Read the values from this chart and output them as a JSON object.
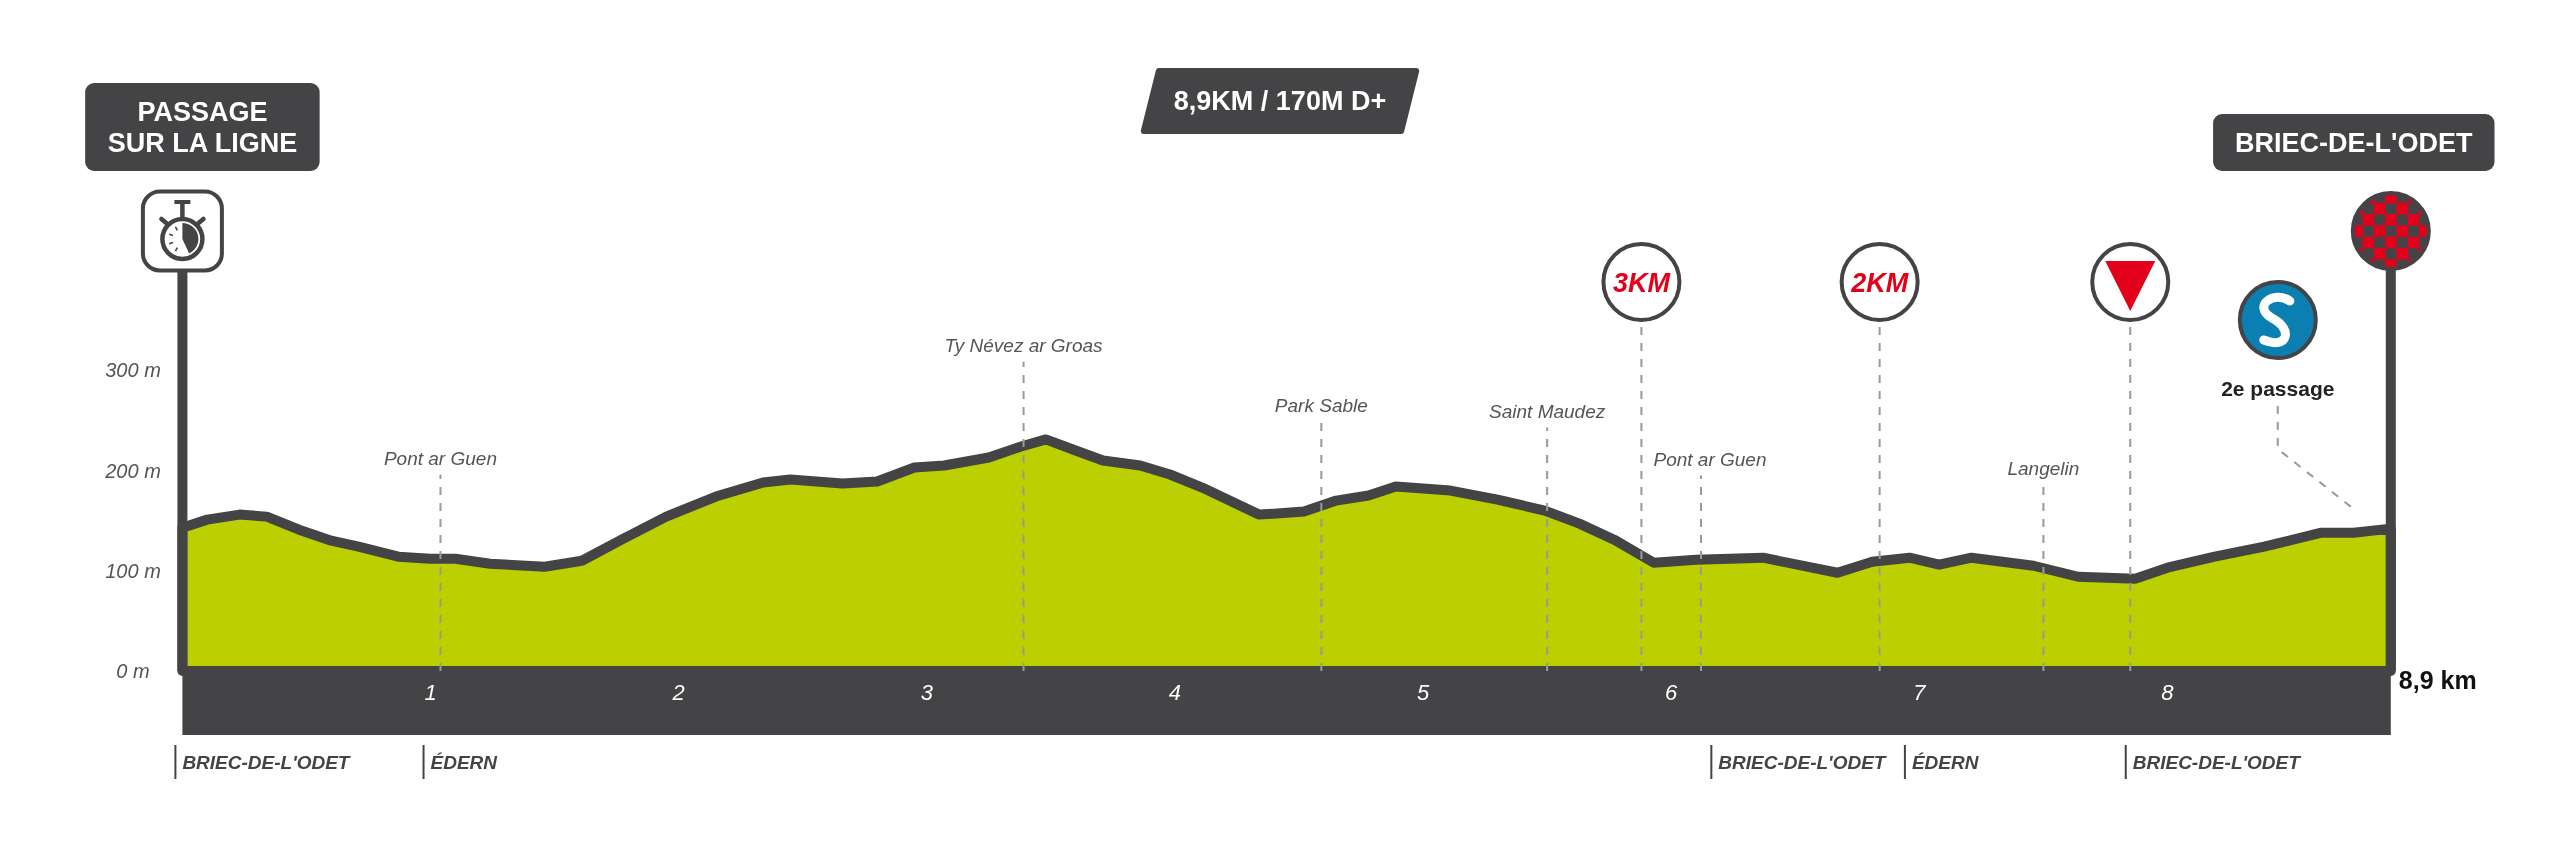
{
  "chart_data": {
    "type": "area",
    "title": "8,9KM / 170M D+",
    "x": [
      0,
      0.1,
      0.23,
      0.34,
      0.47,
      0.6,
      0.71,
      0.87,
      1,
      1.1,
      1.24,
      1.46,
      1.61,
      1.77,
      1.95,
      2.15,
      2.34,
      2.45,
      2.66,
      2.8,
      2.95,
      3.07,
      3.25,
      3.38,
      3.48,
      3.6,
      3.71,
      3.86,
      3.98,
      4.11,
      4.22,
      4.34,
      4.52,
      4.65,
      4.78,
      4.89,
      5.11,
      5.3,
      5.49,
      5.63,
      5.77,
      5.93,
      6.1,
      6.37,
      6.67,
      6.81,
      6.96,
      7.08,
      7.21,
      7.46,
      7.64,
      7.87,
      8,
      8.19,
      8.39,
      8.62,
      8.75,
      8.9
    ],
    "values": [
      143,
      151,
      156,
      154,
      141,
      130,
      124,
      114,
      112,
      112,
      107,
      104,
      110,
      131,
      154,
      174,
      188,
      191,
      187,
      189,
      203,
      205,
      213,
      224,
      231,
      220,
      210,
      205,
      196,
      183,
      170,
      156,
      159,
      170,
      175,
      184,
      180,
      171,
      160,
      147,
      131,
      108,
      111,
      113,
      98,
      109,
      113,
      106,
      113,
      105,
      94,
      92,
      103,
      114,
      124,
      138,
      138,
      142
    ],
    "color": "#bccf00",
    "xlim": [
      0,
      8.9
    ],
    "xticks": [
      1,
      2,
      3,
      4,
      5,
      6,
      7,
      8
    ],
    "ylim": [
      0,
      400
    ],
    "yticks": [
      {
        "value": 0,
        "label": "0 m"
      },
      {
        "value": 100,
        "label": "100 m"
      },
      {
        "value": 200,
        "label": "200 m"
      },
      {
        "value": 300,
        "label": "300 m"
      }
    ],
    "ref_lines": [
      {
        "axis": "x",
        "value": 1.04,
        "label": "Pont ar Guen",
        "color": "#9a9a9a",
        "line_style": "dashed"
      },
      {
        "axis": "x",
        "value": 3.39,
        "label": "Ty Névez ar Groas",
        "color": "#9a9a9a",
        "line_style": "dashed"
      },
      {
        "axis": "x",
        "value": 4.59,
        "label": "Park Sable",
        "color": "#9a9a9a",
        "line_style": "dashed"
      },
      {
        "axis": "x",
        "value": 5.5,
        "label": "Saint Maudez",
        "color": "#9a9a9a",
        "line_style": "dashed"
      },
      {
        "axis": "x",
        "value": 5.88,
        "label": "3KM",
        "color": "#9a9a9a",
        "line_style": "dashed"
      },
      {
        "axis": "x",
        "value": 6.12,
        "label": "Pont ar Guen",
        "color": "#9a9a9a",
        "line_style": "dashed"
      },
      {
        "axis": "x",
        "value": 6.84,
        "label": "2KM",
        "color": "#9a9a9a",
        "line_style": "dashed"
      },
      {
        "axis": "x",
        "value": 7.5,
        "label": "Langelin",
        "color": "#9a9a9a",
        "line_style": "dashed"
      },
      {
        "axis": "x",
        "value": 7.85,
        "color": "#9a9a9a",
        "line_style": "dashed"
      }
    ],
    "annotations": [
      "PASSAGE SUR LA LIGNE",
      "BRIEC-DE-L'ODET",
      "2e passage",
      {
        "text": "8,9 km",
        "x": 8.9,
        "y": 0
      },
      "BRIEC-DE-L'ODET",
      "ÉDERN",
      "BRIEC-DE-L'ODET",
      "ÉDERN",
      "BRIEC-DE-L'ODET"
    ]
  }
}
